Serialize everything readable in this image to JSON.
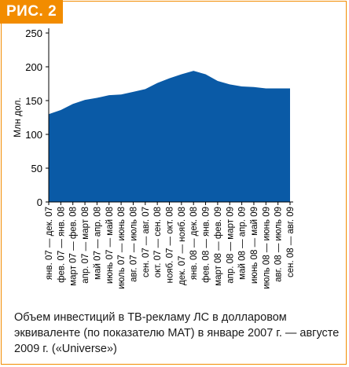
{
  "figure_label": "РИС. 2",
  "caption": "Объем инвестиций в ТВ-рекламу ЛС в долларовом эквиваленте (по показателю МАТ) в январе 2007 г. — августе 2009 г. («Universe»)",
  "colors": {
    "accent": "#f28c00",
    "area_fill": "#0a5aa6",
    "axis": "#000000"
  },
  "chart_data": {
    "type": "area",
    "title": "",
    "xlabel": "",
    "ylabel": "Млн дол.",
    "ylim": [
      0,
      250
    ],
    "yticks": [
      0,
      50,
      100,
      150,
      200,
      250
    ],
    "grid": false,
    "categories": [
      "янв. 07 — дек. 07",
      "фев. 07 — янв. 08",
      "март 07 — фев. 08",
      "апр. 07 — март 08",
      "май 07 — апр. 08",
      "июнь 07 — май 08",
      "июль 07 — июнь 08",
      "авг. 07 — июль 08",
      "сен. 07 — авг. 07",
      "окт. 07 — сен. 08",
      "нояб. 07 — окт. 08",
      "дек. 07 — нояб. 08",
      "янв. 08 — дек. 08",
      "фев. 08 — янв. 09",
      "март 08 — фев. 09",
      "апр. 08 — март 09",
      "май 08 — апр. 09",
      "июнь 08 — май 09",
      "июль 08 — июнь 09",
      "авг. 08 — июль 09",
      "сен. 08 — авг. 09"
    ],
    "values": [
      130,
      136,
      145,
      151,
      154,
      158,
      159,
      163,
      167,
      176,
      183,
      189,
      194,
      189,
      179,
      174,
      171,
      170,
      168,
      168,
      168
    ]
  }
}
